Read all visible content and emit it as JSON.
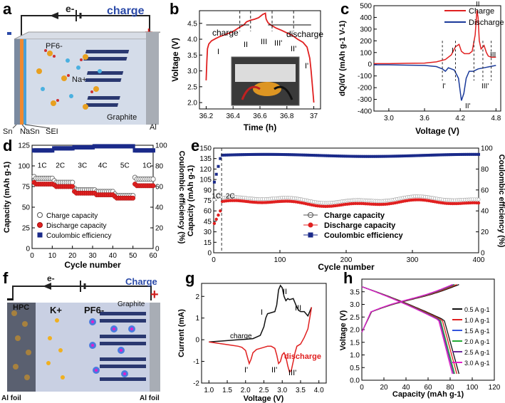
{
  "panel_labels": [
    "a",
    "b",
    "c",
    "d",
    "e",
    "f",
    "g",
    "h"
  ],
  "schematic_a": {
    "electron": "e-",
    "mode": "charge",
    "ion_anion": "PF6-",
    "ion_cation": "Na+",
    "cathode": "Graphite",
    "collector": "Al",
    "anode_labels": [
      "Sn",
      "NaSn",
      "SEI"
    ]
  },
  "schematic_f": {
    "electron": "e-",
    "mode": "Charge",
    "anode": "HPC",
    "cathode": "Graphite",
    "ion_cation": "K+",
    "ion_anion": "PF6-",
    "collector_left": "Al foil",
    "collector_right": "Al foil"
  },
  "chart_data": [
    {
      "id": "b",
      "type": "line",
      "xlabel": "Time (h)",
      "ylabel": "Voltage (V)",
      "xlim": [
        36.15,
        37.05
      ],
      "ylim": [
        1.8,
        4.9
      ],
      "xticks": [
        36.2,
        36.4,
        36.6,
        36.8,
        37.0
      ],
      "yticks": [
        2.0,
        2.5,
        3.0,
        3.5,
        4.0,
        4.5
      ],
      "series": [
        {
          "name": "voltage",
          "color": "#e02020",
          "x": [
            36.2,
            36.205,
            36.21,
            36.22,
            36.24,
            36.27,
            36.3,
            36.33,
            36.36,
            36.39,
            36.42,
            36.45,
            36.48,
            36.5,
            36.53,
            36.56,
            36.59,
            36.62,
            36.64,
            36.645,
            36.65,
            36.66,
            36.68,
            36.72,
            36.76,
            36.8,
            36.84,
            36.88,
            36.92,
            36.95,
            36.97,
            36.98,
            36.99,
            37.0
          ],
          "y": [
            2.7,
            3.3,
            3.7,
            3.85,
            3.95,
            4.02,
            4.08,
            4.13,
            4.18,
            4.22,
            4.3,
            4.38,
            4.45,
            4.55,
            4.6,
            4.63,
            4.68,
            4.78,
            4.82,
            4.65,
            4.6,
            4.52,
            4.45,
            4.35,
            4.28,
            4.2,
            4.12,
            4.0,
            3.9,
            3.75,
            3.4,
            3.0,
            2.5,
            2.0
          ]
        }
      ],
      "labels": {
        "charge": "charge",
        "discharge": "discharge",
        "stages": [
          "I",
          "II",
          "III",
          "III'",
          "II'",
          "I'"
        ]
      }
    },
    {
      "id": "c",
      "type": "line",
      "xlabel": "Voltage (V)",
      "ylabel": "dQ/dV (mAh g-1 V-1)",
      "xlim": [
        2.75,
        4.88
      ],
      "ylim": [
        -400,
        500
      ],
      "xticks": [
        3.0,
        3.6,
        4.2,
        4.8
      ],
      "yticks": [
        -400,
        -300,
        -200,
        -100,
        0,
        100,
        200,
        300,
        400,
        500
      ],
      "series": [
        {
          "name": "Charge",
          "color": "#e02020",
          "x": [
            2.75,
            3.0,
            3.3,
            3.6,
            3.8,
            3.95,
            4.05,
            4.12,
            4.18,
            4.22,
            4.27,
            4.35,
            4.4,
            4.45,
            4.48,
            4.5,
            4.52,
            4.55,
            4.6,
            4.64,
            4.67,
            4.72,
            4.8
          ],
          "y": [
            5,
            5,
            8,
            10,
            20,
            40,
            80,
            150,
            170,
            110,
            90,
            90,
            110,
            250,
            460,
            400,
            200,
            130,
            160,
            100,
            70,
            60,
            60
          ]
        },
        {
          "name": "Discharge",
          "color": "#1a3a9a",
          "x": [
            2.75,
            3.0,
            3.3,
            3.6,
            3.8,
            3.9,
            3.95,
            4.0,
            4.1,
            4.17,
            4.22,
            4.26,
            4.3,
            4.35,
            4.42,
            4.5,
            4.6,
            4.7,
            4.8
          ],
          "y": [
            -5,
            -5,
            -8,
            -10,
            -20,
            -40,
            -60,
            -30,
            -50,
            -120,
            -310,
            -250,
            -120,
            -60,
            -60,
            -40,
            -30,
            -20,
            -10
          ]
        }
      ],
      "stages": [
        "I",
        "II",
        "III",
        "I'",
        "II'",
        "III'"
      ]
    },
    {
      "id": "d",
      "type": "scatter",
      "xlabel": "Cycle number",
      "ylabel": "Capacity (mAh g-1)",
      "y2label": "Coulombic efficiency (%)",
      "xlim": [
        0,
        60
      ],
      "ylim": [
        0,
        125
      ],
      "y2lim": [
        0,
        100
      ],
      "xticks": [
        0,
        10,
        20,
        30,
        40,
        50,
        60
      ],
      "yticks": [
        0,
        25,
        50,
        75,
        100,
        125
      ],
      "y2ticks": [
        0,
        20,
        40,
        60,
        80,
        100
      ],
      "rates": [
        {
          "label": "1C",
          "x": 5
        },
        {
          "label": "2C",
          "x": 14
        },
        {
          "label": "3C",
          "x": 25
        },
        {
          "label": "4C",
          "x": 35
        },
        {
          "label": "5C",
          "x": 46
        },
        {
          "label": "1C",
          "x": 57
        }
      ],
      "series": [
        {
          "name": "Charge capacity",
          "marker": "open",
          "segments": [
            [
              1,
              10,
              85
            ],
            [
              11,
              20,
              80
            ],
            [
              21,
              30,
              71
            ],
            [
              31,
              40,
              69
            ],
            [
              41,
              50,
              64
            ],
            [
              51,
              60,
              84
            ]
          ]
        },
        {
          "name": "Discharge capacity",
          "marker": "red",
          "segments": [
            [
              1,
              10,
              78
            ],
            [
              11,
              20,
              75
            ],
            [
              21,
              30,
              67
            ],
            [
              31,
              40,
              65
            ],
            [
              41,
              50,
              61
            ],
            [
              51,
              60,
              76
            ]
          ]
        },
        {
          "name": "Coulombic efficiency",
          "marker": "blue",
          "axis": "y2",
          "segments": [
            [
              1,
              10,
              95
            ],
            [
              11,
              20,
              97
            ],
            [
              21,
              30,
              98
            ],
            [
              31,
              40,
              99
            ],
            [
              41,
              50,
              99
            ],
            [
              51,
              60,
              95
            ]
          ]
        }
      ]
    },
    {
      "id": "e",
      "type": "scatter",
      "xlabel": "Cycle number",
      "ylabel": "Capacity (mAh g-1)",
      "y2label": "Coulombic efficiency (%)",
      "xlim": [
        0,
        400
      ],
      "ylim": [
        0,
        150
      ],
      "y2lim": [
        0,
        100
      ],
      "xticks": [
        0,
        100,
        200,
        300,
        400
      ],
      "yticks": [
        0,
        15,
        30,
        45,
        60,
        75,
        90,
        105,
        120,
        135,
        150
      ],
      "y2ticks": [
        0,
        20,
        40,
        60,
        80,
        100
      ],
      "rates": [
        {
          "label": "1C",
          "x": 4
        },
        {
          "label": "2C",
          "x": 25
        }
      ],
      "series": [
        {
          "name": "Charge capacity",
          "marker": "open"
        },
        {
          "name": "Discharge capacity",
          "marker": "red"
        },
        {
          "name": "Coulombic efficiency",
          "marker": "blue",
          "axis": "y2"
        }
      ]
    },
    {
      "id": "g",
      "type": "line",
      "xlabel": "Voltage (V)",
      "ylabel": "Current (mA)",
      "xlim": [
        0.8,
        4.2
      ],
      "ylim": [
        -2.0,
        2.6
      ],
      "xticks": [
        1.0,
        1.5,
        2.0,
        2.5,
        3.0,
        3.5,
        4.0
      ],
      "yticks": [
        -2,
        -1,
        0,
        1,
        2
      ],
      "series": [
        {
          "name": "charge",
          "color": "#111111",
          "x": [
            1.0,
            1.4,
            1.8,
            2.0,
            2.2,
            2.4,
            2.5,
            2.55,
            2.6,
            2.7,
            2.8,
            2.85,
            2.9,
            2.95,
            3.0,
            3.05,
            3.1,
            3.15,
            3.2,
            3.3,
            3.35,
            3.4,
            3.45,
            3.5,
            3.6,
            3.7,
            3.8
          ],
          "y": [
            -0.1,
            -0.05,
            0.0,
            0.02,
            0.05,
            0.2,
            0.6,
            1.0,
            1.2,
            1.25,
            1.3,
            1.6,
            2.3,
            2.5,
            2.4,
            2.0,
            1.8,
            1.9,
            1.85,
            1.9,
            1.7,
            1.5,
            1.35,
            1.3,
            1.3,
            1.1,
            1.5
          ]
        },
        {
          "name": "discharge",
          "color": "#e02020",
          "x": [
            3.8,
            3.7,
            3.6,
            3.5,
            3.4,
            3.35,
            3.3,
            3.25,
            3.2,
            3.15,
            3.1,
            3.05,
            3.0,
            2.95,
            2.9,
            2.85,
            2.8,
            2.7,
            2.6,
            2.5,
            2.4,
            2.3,
            2.2,
            2.15,
            2.1,
            2.05,
            2.0,
            1.9,
            1.8,
            1.6,
            1.4,
            1.2,
            1.0
          ],
          "y": [
            1.5,
            0.5,
            0.1,
            -0.2,
            -0.3,
            -0.6,
            -1.0,
            -1.4,
            -1.5,
            -1.2,
            -0.8,
            -0.6,
            -0.7,
            -1.0,
            -1.1,
            -0.7,
            -0.4,
            -0.3,
            -0.3,
            -0.35,
            -0.4,
            -0.45,
            -0.6,
            -0.9,
            -1.1,
            -0.8,
            -0.5,
            -0.35,
            -0.3,
            -0.25,
            -0.2,
            -0.15,
            -0.1
          ]
        }
      ],
      "stages": [
        "I",
        "II",
        "III",
        "I'",
        "II'",
        "III'"
      ]
    },
    {
      "id": "h",
      "type": "line",
      "xlabel": "Capacity (mAh g-1)",
      "ylabel": "Voltage (V)",
      "xlim": [
        0,
        120
      ],
      "ylim": [
        0.0,
        4.0
      ],
      "xticks": [
        0,
        20,
        40,
        60,
        80,
        100,
        120
      ],
      "yticks": [
        0.0,
        0.5,
        1.0,
        1.5,
        2.0,
        2.5,
        3.0,
        3.5
      ],
      "series": [
        {
          "name": "0.5 A g-1",
          "color": "#111111",
          "cap": 88
        },
        {
          "name": "1.0 A g-1",
          "color": "#e02020",
          "cap": 86
        },
        {
          "name": "1.5 A g-1",
          "color": "#3355dd",
          "cap": 84
        },
        {
          "name": "2.0 A g-1",
          "color": "#22aa33",
          "cap": 84
        },
        {
          "name": "2.5 A g-1",
          "color": "#6a2a9a",
          "cap": 83
        },
        {
          "name": "3.0 A g-1",
          "color": "#e020c8",
          "cap": 82
        }
      ]
    }
  ]
}
